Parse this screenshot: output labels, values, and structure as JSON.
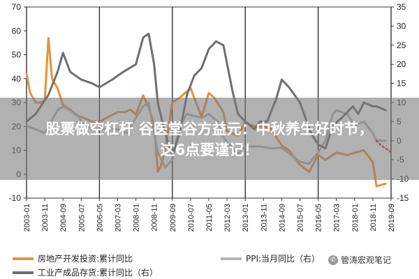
{
  "banner": {
    "line1": "股票做空杠杆 谷医堂谷方益元：中秋养生好时节，",
    "line2": "这6点要谨记！"
  },
  "watermark": {
    "text": "管涛宏观笔记",
    "icon": "wechat-logo"
  },
  "colors": {
    "real_estate": "#E8913A",
    "ppi": "#B5B5B5",
    "inventory": "#6E6E6E"
  },
  "chart_data": {
    "type": "line",
    "categories": [
      "2003-01",
      "2003-11",
      "2004-09",
      "2005-07",
      "2006-05",
      "2007-03",
      "2008-01",
      "2008-11",
      "2009-09",
      "2010-07",
      "2011-05",
      "2012-03",
      "2013-01",
      "2013-11",
      "2014-09",
      "2015-07",
      "2016-05",
      "2017-03",
      "2018-01",
      "2018-11",
      "2019-09"
    ],
    "ylim_left": [
      -10,
      70
    ],
    "yticks_left": [
      "-10",
      "0",
      "10",
      "20",
      "30",
      "40",
      "50",
      "60",
      "70"
    ],
    "ylim_right": [
      -15,
      35
    ],
    "yticks_right": [
      "-15",
      "-10",
      "-5",
      "0",
      "5",
      "10",
      "15",
      "20",
      "25",
      "30",
      "35"
    ],
    "vlines": [
      "2003-01",
      "2006-05",
      "2009-09",
      "2013-01",
      "2016-05",
      "2019-09"
    ],
    "series": [
      {
        "name": "房地产开发投资:累计同比",
        "axis": "left",
        "x": [
          "2003-01",
          "2003-03",
          "2003-06",
          "2003-09",
          "2003-11",
          "2004-01",
          "2004-03",
          "2004-06",
          "2004-09",
          "2005-01",
          "2005-06",
          "2005-07",
          "2006-01",
          "2006-05",
          "2006-10",
          "2007-03",
          "2007-07",
          "2007-10",
          "2008-01",
          "2008-05",
          "2008-08",
          "2008-11",
          "2009-01",
          "2009-03",
          "2009-05",
          "2009-07",
          "2009-09",
          "2010-01",
          "2010-07",
          "2011-01",
          "2011-05",
          "2011-08",
          "2012-01",
          "2012-03",
          "2012-06",
          "2012-09",
          "2013-01",
          "2013-03",
          "2013-06",
          "2013-11",
          "2014-03",
          "2014-09",
          "2015-01",
          "2015-07",
          "2015-12",
          "2016-05",
          "2016-09",
          "2017-03",
          "2017-09",
          "2018-01",
          "2018-06",
          "2018-11",
          "2019-01",
          "2019-06"
        ],
        "values": [
          42,
          34,
          30,
          30,
          31,
          57,
          40,
          36,
          29,
          27,
          24,
          24,
          22,
          22,
          24,
          26,
          26,
          27,
          25,
          33,
          28,
          21,
          1,
          4,
          10,
          20,
          30,
          32,
          36,
          24,
          34,
          32,
          26,
          18,
          17,
          16,
          22,
          21,
          20,
          20,
          19,
          12,
          10,
          4,
          1,
          8,
          6,
          9,
          8,
          9,
          10,
          5,
          -5,
          -4
        ]
      },
      {
        "name": "PPI:当月同比（右）",
        "axis": "right",
        "x": [
          "2003-01",
          "2003-06",
          "2003-11",
          "2004-06",
          "2004-09",
          "2005-01",
          "2005-06",
          "2005-07",
          "2006-01",
          "2006-05",
          "2006-12",
          "2007-03",
          "2007-08",
          "2008-01",
          "2008-05",
          "2008-08",
          "2008-11",
          "2009-01",
          "2009-05",
          "2009-09",
          "2010-01",
          "2010-05",
          "2011-01",
          "2011-05",
          "2011-10",
          "2012-01",
          "2012-03",
          "2012-09",
          "2013-01",
          "2013-09",
          "2014-03",
          "2014-09",
          "2015-07",
          "2015-12",
          "2016-05",
          "2016-09",
          "2017-01",
          "2017-03",
          "2017-09",
          "2018-01",
          "2018-06",
          "2018-11",
          "2019-01",
          "2019-06"
        ],
        "values": [
          4,
          3,
          2,
          8,
          9,
          8,
          6,
          5,
          3,
          3,
          3,
          3,
          2,
          6,
          9,
          10,
          2,
          -3,
          -7,
          -5,
          4,
          7,
          6,
          7,
          5,
          1,
          -0.5,
          -3.5,
          -1.5,
          -1.5,
          -2,
          -1.8,
          -5.5,
          -6,
          -3,
          0,
          7,
          8,
          7,
          4,
          5,
          2,
          0,
          0
        ]
      },
      {
        "name": "工业产成品存货:累计同比（右）",
        "axis": "right",
        "x": [
          "2003-01",
          "2003-06",
          "2004-01",
          "2004-06",
          "2004-09",
          "2005-01",
          "2005-07",
          "2006-01",
          "2006-05",
          "2006-12",
          "2007-06",
          "2008-01",
          "2008-05",
          "2008-08",
          "2008-11",
          "2009-01",
          "2009-05",
          "2009-09",
          "2010-01",
          "2010-05",
          "2010-09",
          "2011-01",
          "2011-05",
          "2011-09",
          "2012-01",
          "2012-06",
          "2012-09",
          "2013-01",
          "2013-06",
          "2013-09",
          "2014-01",
          "2014-06",
          "2014-09",
          "2015-01",
          "2015-07",
          "2016-01",
          "2016-05",
          "2016-09",
          "2017-01",
          "2017-06",
          "2017-12",
          "2018-03",
          "2018-06",
          "2018-11",
          "2019-01",
          "2019-06"
        ],
        "values": [
          5,
          7,
          12,
          18,
          23,
          18,
          16,
          15,
          14,
          16,
          18,
          20,
          27,
          28,
          20,
          10,
          2,
          -4,
          2,
          12,
          17,
          19,
          24,
          26,
          25,
          13,
          7,
          5,
          3,
          5,
          5,
          11,
          16,
          14,
          10,
          2,
          -1,
          -2,
          4,
          6,
          9,
          7,
          10,
          9,
          9,
          8
        ]
      }
    ],
    "projection": {
      "axis": "right",
      "x": [
        "2019-01",
        "2019-03",
        "2019-06",
        "2019-09"
      ],
      "values": [
        0,
        -1,
        -2,
        -3
      ]
    }
  }
}
